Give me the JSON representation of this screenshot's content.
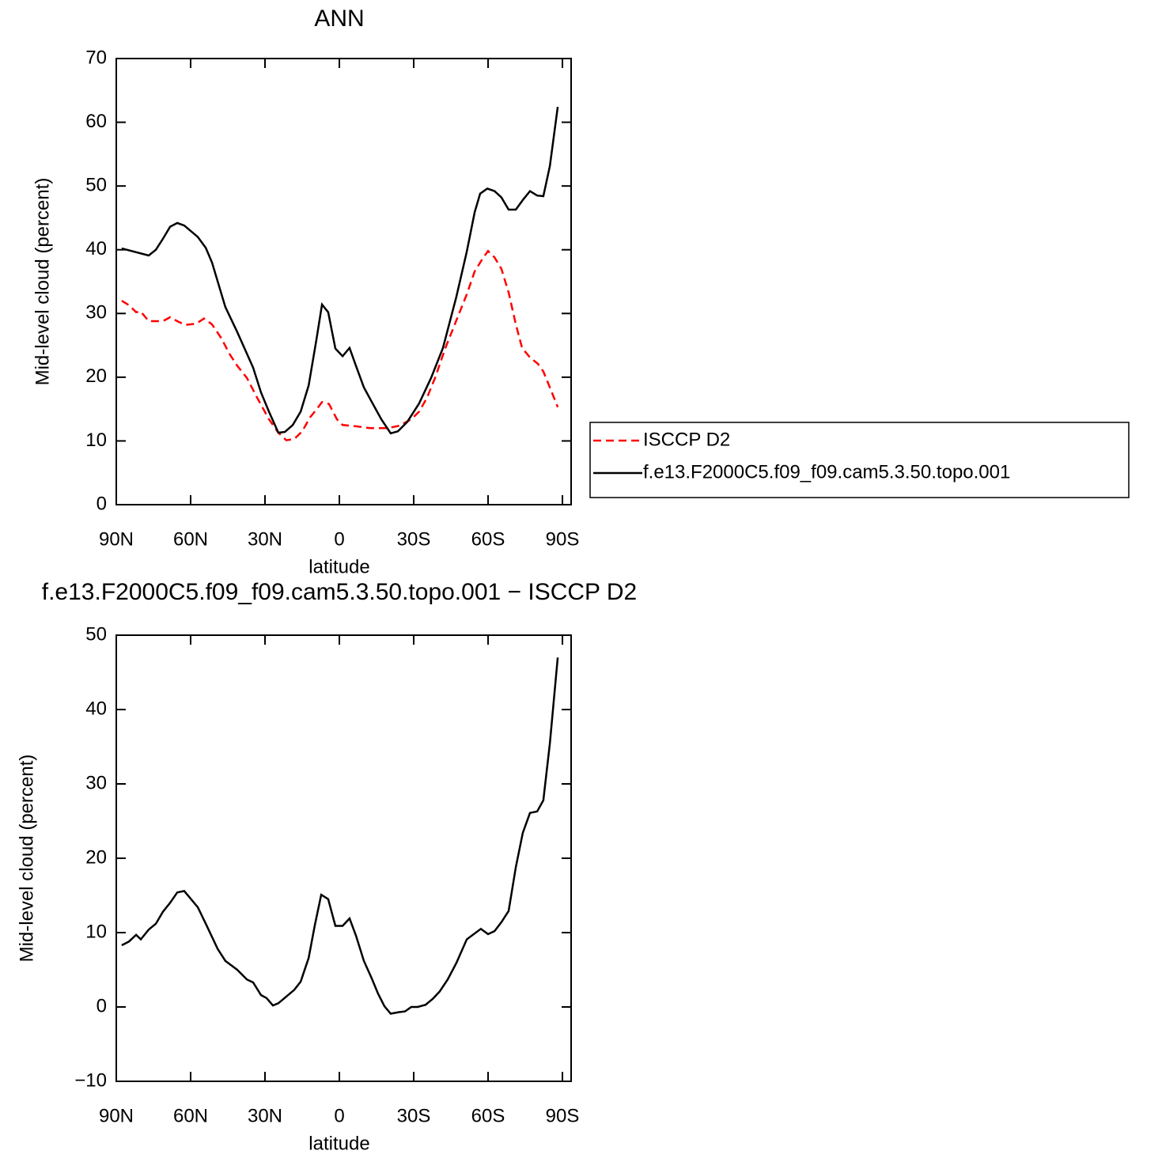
{
  "chart_data": [
    {
      "type": "line",
      "title": "ANN",
      "xlabel": "latitude",
      "ylabel": "Mid-level cloud (percent)",
      "xlim": [
        90,
        -93.5
      ],
      "xticks": [
        {
          "value": 90,
          "label": "90N"
        },
        {
          "value": 60,
          "label": "60N"
        },
        {
          "value": 30,
          "label": "30N"
        },
        0,
        {
          "value": -30,
          "label": "30S"
        },
        {
          "value": -60,
          "label": "60S"
        },
        {
          "value": -90,
          "label": "90S"
        }
      ],
      "ylim": [
        0,
        70
      ],
      "yticks": [
        0,
        10,
        20,
        30,
        40,
        50,
        60,
        70
      ],
      "legend": "right",
      "series": [
        {
          "name": "ISCCP D2",
          "color": "#ff0000",
          "line_style": "dashed",
          "x": [
            87.8,
            84.9,
            82.0,
            80.1,
            76.9,
            71.2,
            68.3,
            65.4,
            62.2,
            57.8,
            54.6,
            51.4,
            47.6,
            44.4,
            41.2,
            37.3,
            33.2,
            28.4,
            24.6,
            21.4,
            18.2,
            15.0,
            11.8,
            9.3,
            7.0,
            4.2,
            1.0,
            -1.3,
            -6.7,
            -12.5,
            -19.5,
            -24.3,
            -29.0,
            -32.2,
            -35.4,
            -38.6,
            -42.8,
            -47.2,
            -51.4,
            -54.6,
            -57.8,
            -60.0,
            -62.6,
            -65.4,
            -68.3,
            -71.2,
            -73.7,
            -76.9,
            -80.1,
            -82.3,
            -84.9,
            -88.1
          ],
          "values": [
            32.0,
            31.3,
            30.2,
            30.3,
            28.8,
            28.8,
            29.4,
            28.8,
            28.2,
            28.4,
            29.2,
            28.3,
            26.1,
            23.7,
            21.8,
            19.9,
            16.8,
            13.4,
            11.3,
            10.1,
            10.3,
            11.5,
            13.7,
            14.9,
            16.1,
            15.8,
            13.4,
            12.5,
            12.3,
            12.0,
            12.0,
            12.4,
            13.4,
            14.6,
            16.8,
            19.9,
            24.6,
            28.9,
            33.0,
            36.6,
            38.6,
            39.8,
            38.8,
            37.0,
            33.3,
            28.3,
            24.6,
            23.1,
            22.1,
            20.9,
            18.4,
            15.3
          ]
        },
        {
          "name": "f.e13.F2000C5.f09_f09.cam5.3.50.topo.001",
          "color": "#000000",
          "line_style": "solid",
          "x": [
            87.8,
            76.9,
            74.0,
            71.2,
            68.3,
            65.4,
            62.6,
            57.1,
            53.9,
            51.4,
            46.0,
            41.2,
            34.8,
            31.6,
            28.4,
            24.6,
            22.0,
            18.8,
            15.6,
            12.4,
            9.3,
            7.0,
            4.5,
            1.6,
            -1.3,
            -4.1,
            -6.7,
            -9.9,
            -13.1,
            -16.9,
            -20.7,
            -23.6,
            -27.4,
            -32.2,
            -37.0,
            -41.8,
            -47.2,
            -51.4,
            -54.6,
            -56.8,
            -59.7,
            -62.6,
            -65.4,
            -68.3,
            -71.2,
            -74.0,
            -76.9,
            -79.8,
            -82.3,
            -84.9,
            -88.1
          ],
          "values": [
            40.2,
            39.1,
            40.0,
            41.7,
            43.6,
            44.2,
            43.8,
            42.0,
            40.3,
            38.0,
            31.0,
            27.1,
            21.5,
            17.6,
            14.6,
            11.3,
            11.4,
            12.5,
            14.6,
            18.7,
            25.8,
            31.4,
            30.2,
            24.5,
            23.3,
            24.6,
            21.8,
            18.4,
            16.1,
            13.4,
            11.2,
            11.5,
            13.0,
            15.9,
            19.9,
            24.6,
            32.6,
            39.7,
            45.9,
            48.8,
            49.6,
            49.2,
            48.2,
            46.3,
            46.3,
            47.8,
            49.2,
            48.5,
            48.4,
            53.1,
            62.4
          ]
        }
      ]
    },
    {
      "type": "line",
      "title": "f.e13.F2000C5.f09_f09.cam5.3.50.topo.001 − ISCCP D2",
      "xlabel": "latitude",
      "ylabel": "Mid-level cloud (percent)",
      "xlim": [
        90,
        -93.5
      ],
      "xticks": [
        {
          "value": 90,
          "label": "90N"
        },
        {
          "value": 60,
          "label": "60N"
        },
        {
          "value": 30,
          "label": "30N"
        },
        0,
        {
          "value": -30,
          "label": "30S"
        },
        {
          "value": -60,
          "label": "60S"
        },
        {
          "value": -90,
          "label": "90S"
        }
      ],
      "ylim": [
        -10,
        50
      ],
      "yticks": [
        {
          "value": -10,
          "label": "−10"
        },
        0,
        10,
        20,
        30,
        40,
        50
      ],
      "color": "#000000",
      "x": [
        87.8,
        84.9,
        82.0,
        80.1,
        76.9,
        74.0,
        71.2,
        68.3,
        65.4,
        62.6,
        57.1,
        53.9,
        49.1,
        46.0,
        41.2,
        37.3,
        34.8,
        31.6,
        29.4,
        26.8,
        24.6,
        21.4,
        18.2,
        15.6,
        12.4,
        9.9,
        7.3,
        4.5,
        1.6,
        -1.3,
        -4.1,
        -6.7,
        -9.9,
        -13.1,
        -15.6,
        -18.2,
        -20.7,
        -23.9,
        -26.5,
        -29.0,
        -31.6,
        -34.8,
        -37.7,
        -40.5,
        -43.7,
        -47.2,
        -51.4,
        -57.1,
        -60.0,
        -62.6,
        -65.4,
        -68.3,
        -71.2,
        -74.0,
        -76.9,
        -79.8,
        -82.3,
        -84.9,
        -88.1
      ],
      "values": [
        8.3,
        8.8,
        9.7,
        9.1,
        10.4,
        11.2,
        12.8,
        14.0,
        15.4,
        15.6,
        13.4,
        11.2,
        7.8,
        6.2,
        5.0,
        3.7,
        3.3,
        1.6,
        1.2,
        0.2,
        0.5,
        1.4,
        2.3,
        3.4,
        6.6,
        11.0,
        15.1,
        14.5,
        10.9,
        10.9,
        11.9,
        9.6,
        6.2,
        3.8,
        1.8,
        0.1,
        -0.9,
        -0.7,
        -0.6,
        0.0,
        0.0,
        0.3,
        1.1,
        2.1,
        3.7,
        5.9,
        9.1,
        10.5,
        9.8,
        10.2,
        11.4,
        12.9,
        18.8,
        23.4,
        26.1,
        26.3,
        27.8,
        35.4,
        47.0
      ]
    }
  ]
}
